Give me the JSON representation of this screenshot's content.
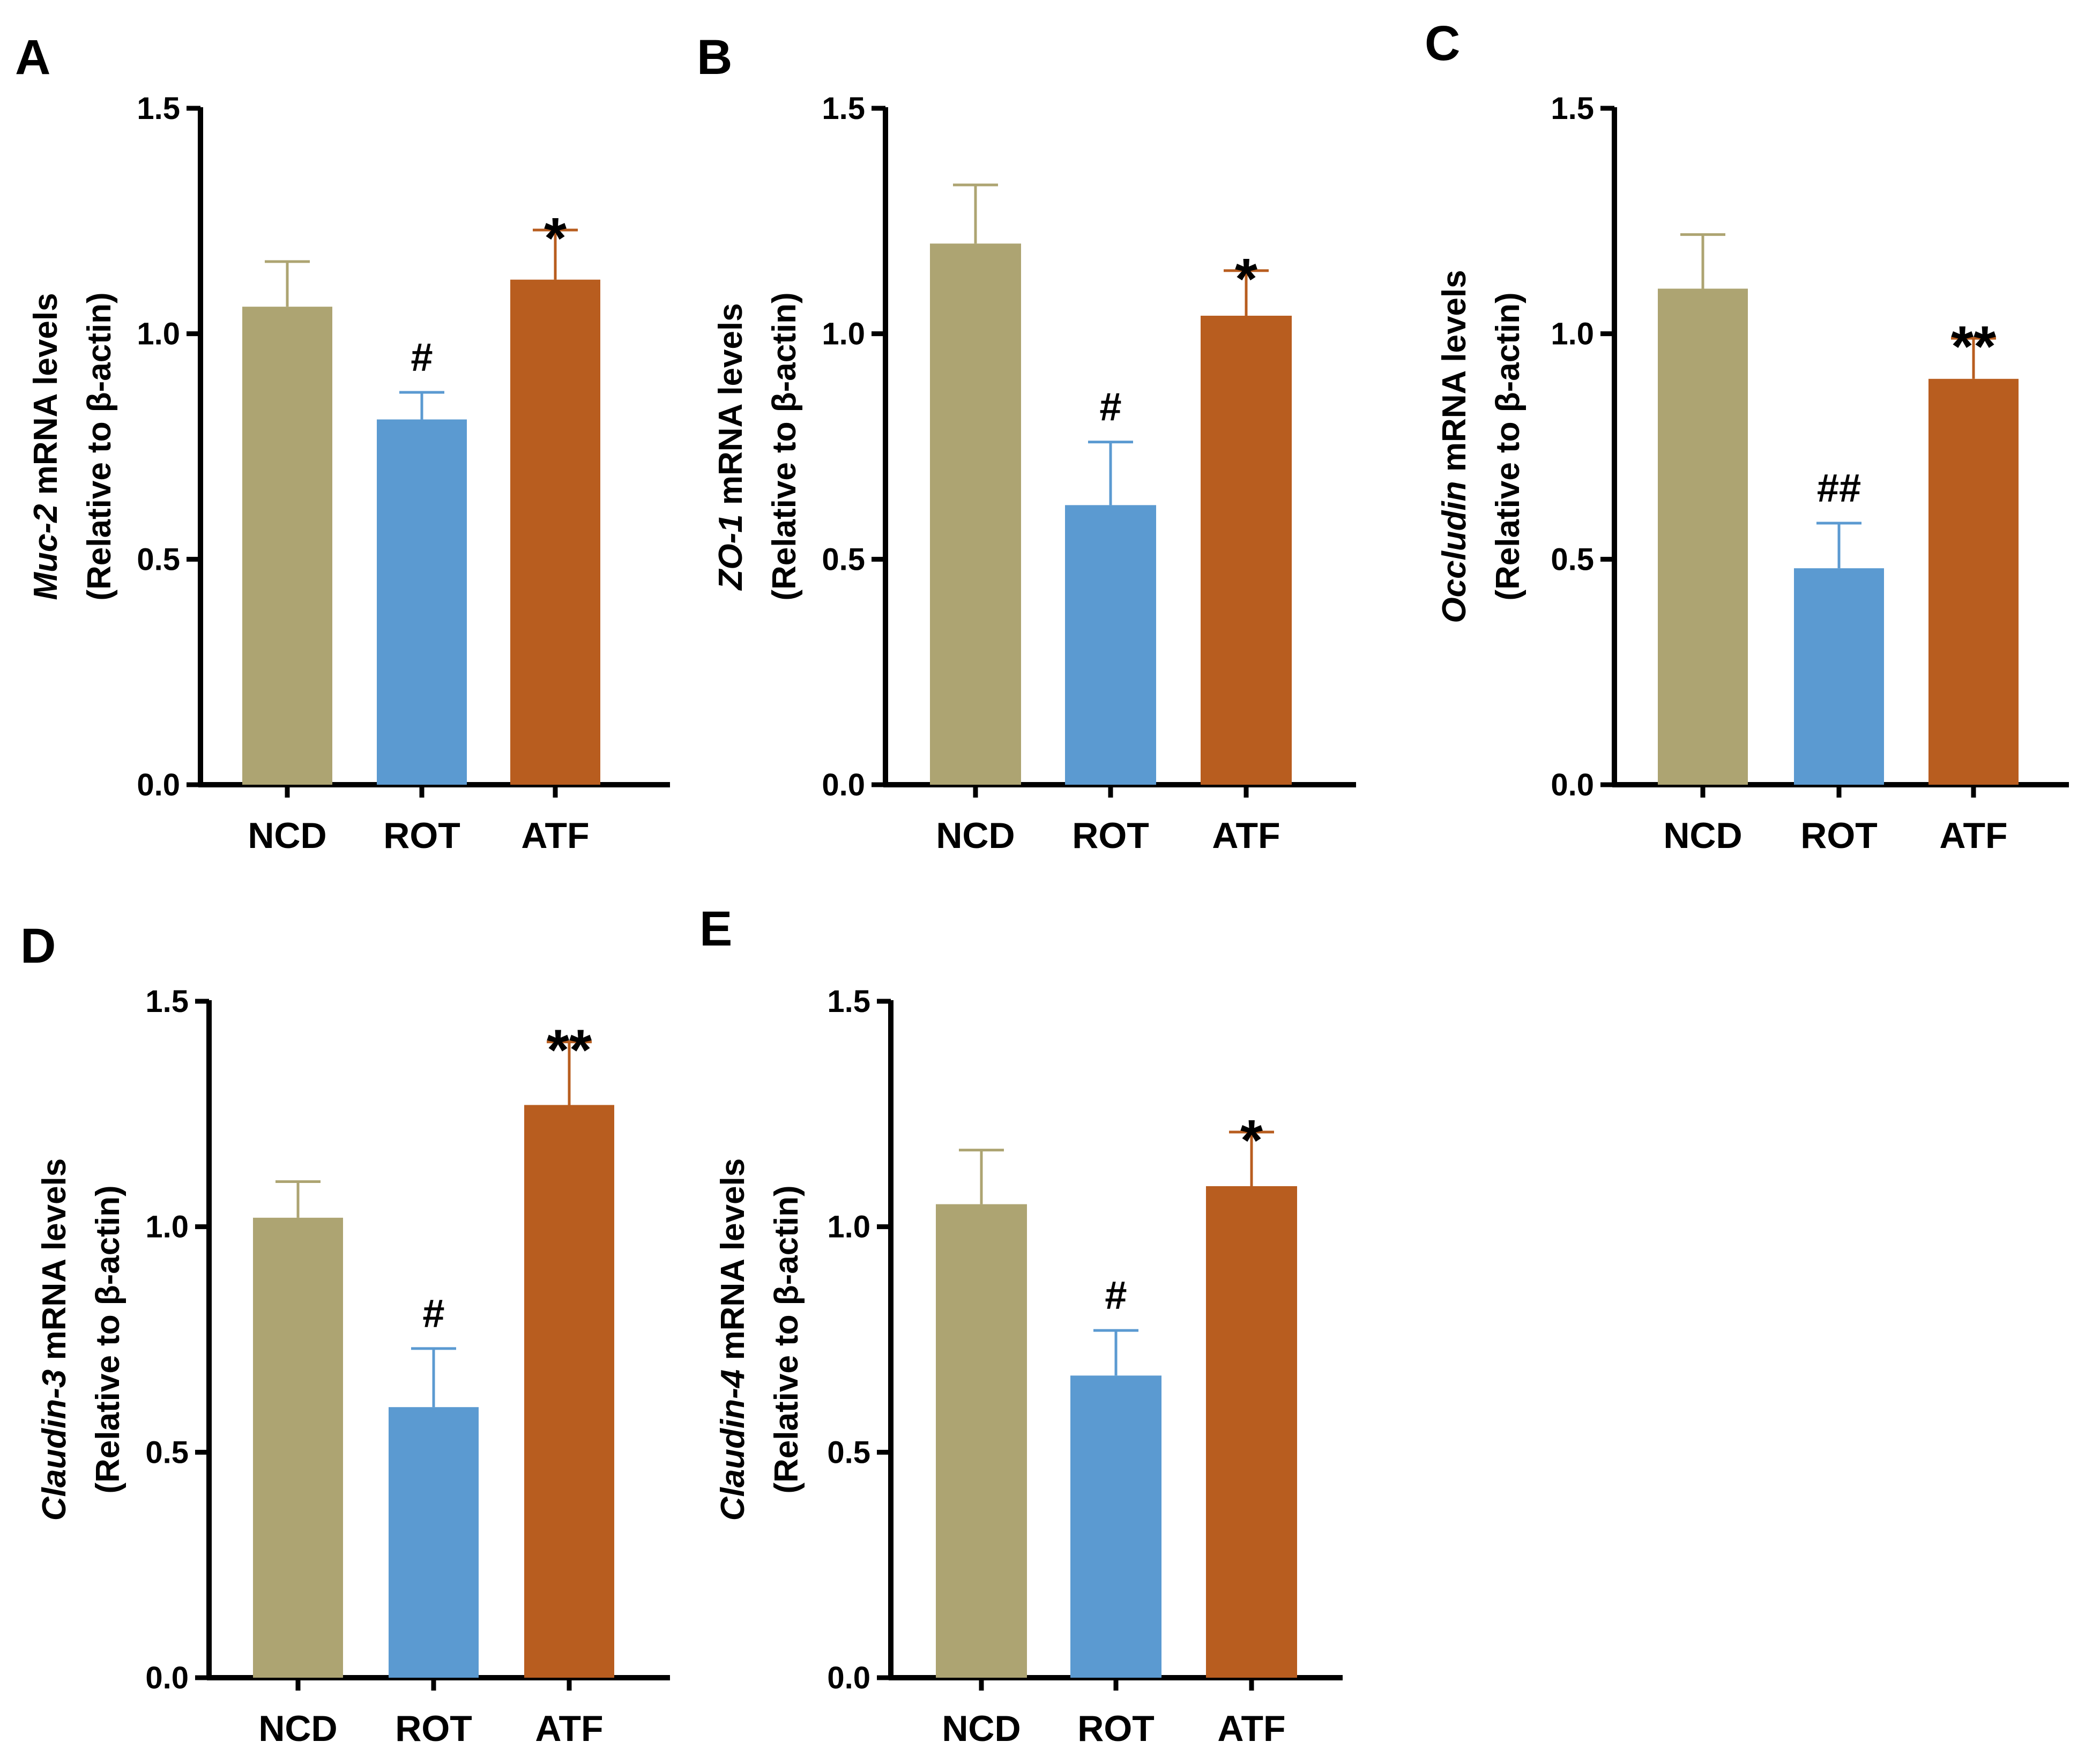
{
  "colors": {
    "NCD": "#ada472",
    "ROT": "#5b9ad1",
    "ATF": "#b85d1f",
    "axis": "#000000"
  },
  "chart_data": [
    {
      "type": "bar",
      "panel": "A",
      "ylabel_gene": "Muc-2",
      "ylabel_rest": "  mRNA levels",
      "ylabel_line2": "(Relative to β-actin)",
      "categories": [
        "NCD",
        "ROT",
        "ATF"
      ],
      "values": [
        1.06,
        0.81,
        1.12
      ],
      "errors": [
        0.1,
        0.06,
        0.11
      ],
      "annotations": [
        "",
        "#",
        "*"
      ],
      "ylim": [
        0,
        1.5
      ],
      "yticks": [
        "0.0",
        "0.5",
        "1.0",
        "1.5"
      ]
    },
    {
      "type": "bar",
      "panel": "B",
      "ylabel_gene": "ZO-1",
      "ylabel_rest": " mRNA levels",
      "ylabel_line2": "(Relative to β-actin)",
      "categories": [
        "NCD",
        "ROT",
        "ATF"
      ],
      "values": [
        1.2,
        0.62,
        1.04
      ],
      "errors": [
        0.13,
        0.14,
        0.1
      ],
      "annotations": [
        "",
        "#",
        "*"
      ],
      "ylim": [
        0,
        1.5
      ],
      "yticks": [
        "0.0",
        "0.5",
        "1.0",
        "1.5"
      ]
    },
    {
      "type": "bar",
      "panel": "C",
      "ylabel_gene": "Occludin",
      "ylabel_rest": " mRNA levels",
      "ylabel_line2": "(Relative to β-actin)",
      "categories": [
        "NCD",
        "ROT",
        "ATF"
      ],
      "values": [
        1.1,
        0.48,
        0.9
      ],
      "errors": [
        0.12,
        0.1,
        0.09
      ],
      "annotations": [
        "",
        "##",
        "**"
      ],
      "ylim": [
        0,
        1.5
      ],
      "yticks": [
        "0.0",
        "0.5",
        "1.0",
        "1.5"
      ]
    },
    {
      "type": "bar",
      "panel": "D",
      "ylabel_gene": "Claudin-3",
      "ylabel_rest": " mRNA levels",
      "ylabel_line2": "(Relative to β-actin)",
      "categories": [
        "NCD",
        "ROT",
        "ATF"
      ],
      "values": [
        1.02,
        0.6,
        1.27
      ],
      "errors": [
        0.08,
        0.13,
        0.14
      ],
      "annotations": [
        "",
        "#",
        "**"
      ],
      "ylim": [
        0,
        1.5
      ],
      "yticks": [
        "0.0",
        "0.5",
        "1.0",
        "1.5"
      ]
    },
    {
      "type": "bar",
      "panel": "E",
      "ylabel_gene": "Claudin-4",
      "ylabel_rest": " mRNA levels",
      "ylabel_line2": "(Relative to β-actin)",
      "categories": [
        "NCD",
        "ROT",
        "ATF"
      ],
      "values": [
        1.05,
        0.67,
        1.09
      ],
      "errors": [
        0.12,
        0.1,
        0.12
      ],
      "annotations": [
        "",
        "#",
        "*"
      ],
      "ylim": [
        0,
        1.5
      ],
      "yticks": [
        "0.0",
        "0.5",
        "1.0",
        "1.5"
      ]
    }
  ]
}
